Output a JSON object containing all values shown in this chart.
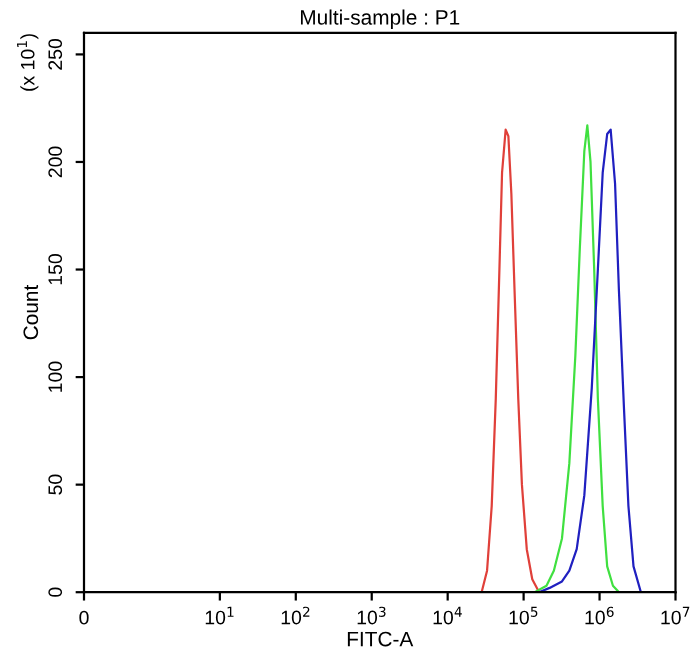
{
  "chart_data": {
    "type": "line",
    "title": "Multi-sample : P1",
    "xlabel": "FITC-A",
    "ylabel": "Count",
    "annotations": [
      "(x 10$^{1}$)"
    ],
    "series": [
      {
        "color": "#e0403a",
        "x": [
          28000,
          33000,
          38000,
          43000,
          48000,
          52000,
          58000,
          63000,
          69000,
          76000,
          85000,
          95000,
          110000,
          130000,
          160000
        ],
        "values": [
          0,
          10,
          40,
          90,
          150,
          195,
          215,
          212,
          185,
          140,
          90,
          50,
          20,
          6,
          0
        ]
      },
      {
        "color": "#40e040",
        "x": [
          140000,
          200000,
          250000,
          320000,
          400000,
          480000,
          550000,
          630000,
          690000,
          760000,
          850000,
          950000,
          1100000,
          1260000,
          1500000,
          1800000
        ],
        "values": [
          0,
          3,
          10,
          25,
          60,
          110,
          160,
          205,
          217,
          200,
          150,
          90,
          40,
          12,
          3,
          0
        ]
      },
      {
        "color": "#2020c0",
        "x": [
          160000,
          220000,
          320000,
          400000,
          500000,
          630000,
          790000,
          950000,
          1100000,
          1260000,
          1400000,
          1600000,
          1800000,
          2100000,
          2400000,
          2800000,
          3500000
        ],
        "values": [
          0,
          2,
          5,
          10,
          20,
          45,
          95,
          150,
          195,
          213,
          215,
          190,
          140,
          85,
          40,
          12,
          0
        ]
      }
    ],
    "xlim": [
      0,
      10000000
    ],
    "xticks": [
      0,
      {
        "value": 10,
        "label": "10$^{1}$"
      },
      {
        "value": 100,
        "label": "10$^{2}$"
      },
      {
        "value": 1000,
        "label": "10$^{3}$"
      },
      {
        "value": 10000,
        "label": "10$^{4}$"
      },
      {
        "value": 100000,
        "label": "10$^{5}$"
      },
      {
        "value": 1000000,
        "label": "10$^{6}$"
      },
      {
        "value": 10000000,
        "label": "10$^{7}$"
      }
    ],
    "ylim": [
      0,
      260
    ],
    "yticks": [
      0,
      50,
      100,
      150,
      200,
      250
    ],
    "log": "x",
    "grid": false,
    "legend": false,
    "line_style": "solid",
    "marker": "none"
  }
}
